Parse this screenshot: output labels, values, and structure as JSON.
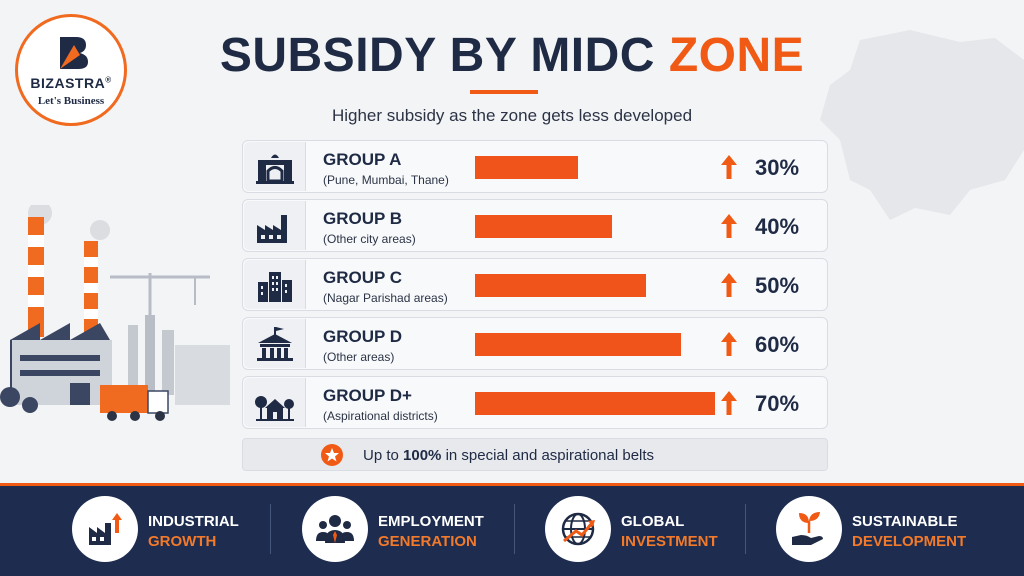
{
  "logo": {
    "brand": "BIZASTRA",
    "registered": "®",
    "tagline": "Let's Business",
    "icon": "bizastra-b-icon"
  },
  "header": {
    "title_main": "SUBSIDY BY MIDC ",
    "title_accent": "ZONE",
    "subtitle": "Higher subsidy as the zone gets less developed"
  },
  "colors": {
    "navy": "#1f2a44",
    "orange": "#f05a14",
    "footer": "#1d2c4f"
  },
  "chart_data": {
    "type": "bar",
    "orientation": "horizontal",
    "categories": [
      "GROUP A",
      "GROUP B",
      "GROUP C",
      "GROUP D",
      "GROUP D+"
    ],
    "descriptions": [
      "(Pune, Mumbai, Thane)",
      "(Other city areas)",
      "(Nagar Parishad areas)",
      "(Other areas)",
      "(Aspirational districts)"
    ],
    "values": [
      30,
      40,
      50,
      60,
      70
    ],
    "value_labels": [
      "30%",
      "40%",
      "50%",
      "60%",
      "70%"
    ],
    "icons": [
      "gateway-icon",
      "factory-icon",
      "buildings-icon",
      "government-building-icon",
      "houses-trees-icon"
    ],
    "unit": "%",
    "xlim": [
      0,
      70
    ],
    "grid": false,
    "legend": "none"
  },
  "note": {
    "prefix": "Up to ",
    "highlight": "100%",
    "suffix": " in special and aspirational belts",
    "icon": "star-icon"
  },
  "footer": {
    "items": [
      {
        "line1": "INDUSTRIAL",
        "line2": "GROWTH",
        "icon": "factory-growth-icon"
      },
      {
        "line1": "EMPLOYMENT",
        "line2": "GENERATION",
        "icon": "people-group-icon"
      },
      {
        "line1": "GLOBAL",
        "line2": "INVESTMENT",
        "icon": "globe-icon"
      },
      {
        "line1": "SUSTAINABLE",
        "line2": "DEVELOPMENT",
        "icon": "hand-plant-icon"
      }
    ]
  }
}
